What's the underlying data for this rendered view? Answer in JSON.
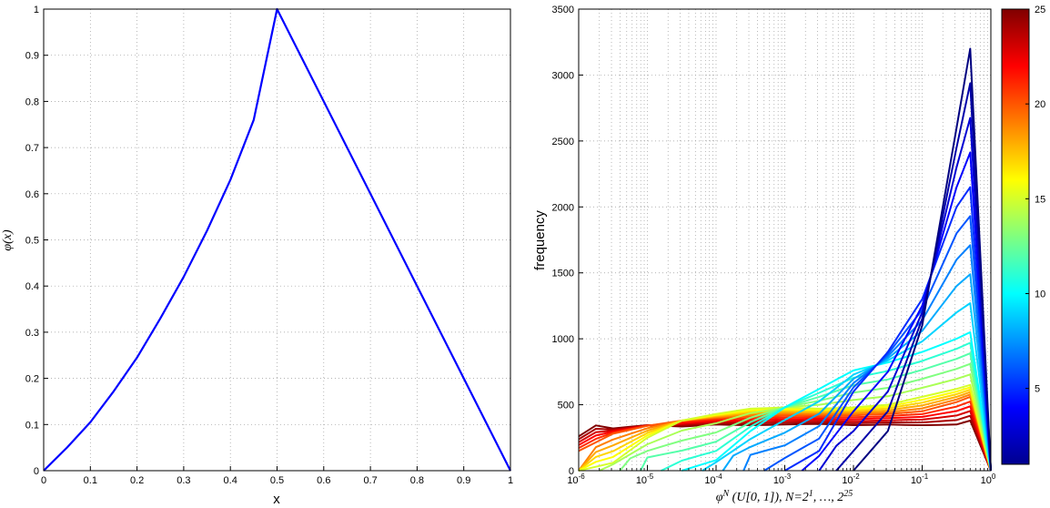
{
  "chart_data": [
    {
      "type": "line",
      "xlabel": "x",
      "ylabel": "φ(x)",
      "xlim": [
        0,
        1
      ],
      "ylim": [
        0,
        1
      ],
      "xticks": [
        "0",
        "0.1",
        "0.2",
        "0.3",
        "0.4",
        "0.5",
        "0.6",
        "0.7",
        "0.8",
        "0.9",
        "1"
      ],
      "yticks": [
        "0",
        "0.1",
        "0.2",
        "0.3",
        "0.4",
        "0.5",
        "0.6",
        "0.7",
        "0.8",
        "0.9",
        "1"
      ],
      "grid": true,
      "series": [
        {
          "color": "#0000ff",
          "x": [
            0,
            0.05,
            0.1,
            0.15,
            0.2,
            0.25,
            0.3,
            0.35,
            0.4,
            0.45,
            0.5,
            0.6,
            0.7,
            0.8,
            0.9,
            1.0
          ],
          "values": [
            0,
            0.05,
            0.105,
            0.172,
            0.245,
            0.33,
            0.42,
            0.52,
            0.63,
            0.76,
            1.0,
            0.8,
            0.6,
            0.4,
            0.2,
            0
          ]
        }
      ]
    },
    {
      "type": "line",
      "xlabel_parts": [
        "φ",
        "N",
        " (U[0, 1]), N=2",
        "1",
        ", …, 2",
        "25"
      ],
      "ylabel": "frequency",
      "xscale": "log",
      "xlim": [
        1e-06,
        1
      ],
      "ylim": [
        0,
        3500
      ],
      "xticks": [
        {
          "base": "10",
          "exp": "-6"
        },
        {
          "base": "10",
          "exp": "-5"
        },
        {
          "base": "10",
          "exp": "-4"
        },
        {
          "base": "10",
          "exp": "-3"
        },
        {
          "base": "10",
          "exp": "-2"
        },
        {
          "base": "10",
          "exp": "-1"
        },
        {
          "base": "10",
          "exp": "0"
        }
      ],
      "yticks": [
        "0",
        "500",
        "1000",
        "1500",
        "2000",
        "2500",
        "3000",
        "3500"
      ],
      "grid": true,
      "colormap": "jet",
      "colorbar": {
        "min": 1,
        "max": 25,
        "ticks": [
          "5",
          "10",
          "15",
          "20",
          "25"
        ]
      },
      "N_series": [
        1,
        2,
        3,
        4,
        5,
        6,
        7,
        8,
        9,
        10,
        11,
        12,
        13,
        14,
        15,
        16,
        17,
        18,
        19,
        20,
        21,
        22,
        23,
        24,
        25
      ],
      "key_curves": [
        {
          "N": 1,
          "x_log10": [
            -2.0,
            -1.5,
            -1.0,
            -0.5,
            -0.3,
            0
          ],
          "values": [
            0,
            300,
            1100,
            2600,
            3200,
            0
          ]
        },
        {
          "N": 5,
          "x_log10": [
            -3.0,
            -2.5,
            -2.0,
            -1.5,
            -1.0,
            -0.5,
            -0.3,
            0
          ],
          "values": [
            0,
            150,
            600,
            900,
            1300,
            2000,
            2150,
            0
          ]
        },
        {
          "N": 10,
          "x_log10": [
            -4.5,
            -4.0,
            -3.5,
            -3.0,
            -2.5,
            -2.0,
            -1.5,
            -1.0,
            -0.5,
            -0.3,
            0
          ],
          "values": [
            0,
            80,
            300,
            480,
            620,
            760,
            820,
            900,
            1000,
            1050,
            0
          ]
        },
        {
          "N": 15,
          "x_log10": [
            -6.0,
            -5.5,
            -5.0,
            -4.5,
            -4.0,
            -3.5,
            -3.0,
            -2.5,
            -2.0,
            -1.5,
            -1.0,
            -0.5,
            -0.3,
            0
          ],
          "values": [
            0,
            60,
            250,
            380,
            430,
            470,
            480,
            470,
            480,
            500,
            560,
            620,
            650,
            0
          ]
        },
        {
          "N": 20,
          "x_log10": [
            -6.0,
            -5.5,
            -5.0,
            -4.5,
            -4.0,
            -3.5,
            -3.0,
            -2.5,
            -2.0,
            -1.5,
            -1.0,
            -0.5,
            -0.3,
            0
          ],
          "values": [
            150,
            280,
            340,
            380,
            400,
            410,
            420,
            420,
            420,
            430,
            450,
            520,
            560,
            0
          ]
        },
        {
          "N": 25,
          "x_log10": [
            -6.0,
            -5.7,
            -5.5,
            -5.0,
            -4.5,
            -4.0,
            -3.5,
            -3.0,
            -2.5,
            -2.0,
            -1.5,
            -1.0,
            -0.5,
            -0.3,
            0
          ],
          "values": [
            260,
            360,
            320,
            345,
            335,
            350,
            345,
            350,
            355,
            345,
            350,
            345,
            350,
            380,
            0
          ]
        }
      ]
    }
  ]
}
